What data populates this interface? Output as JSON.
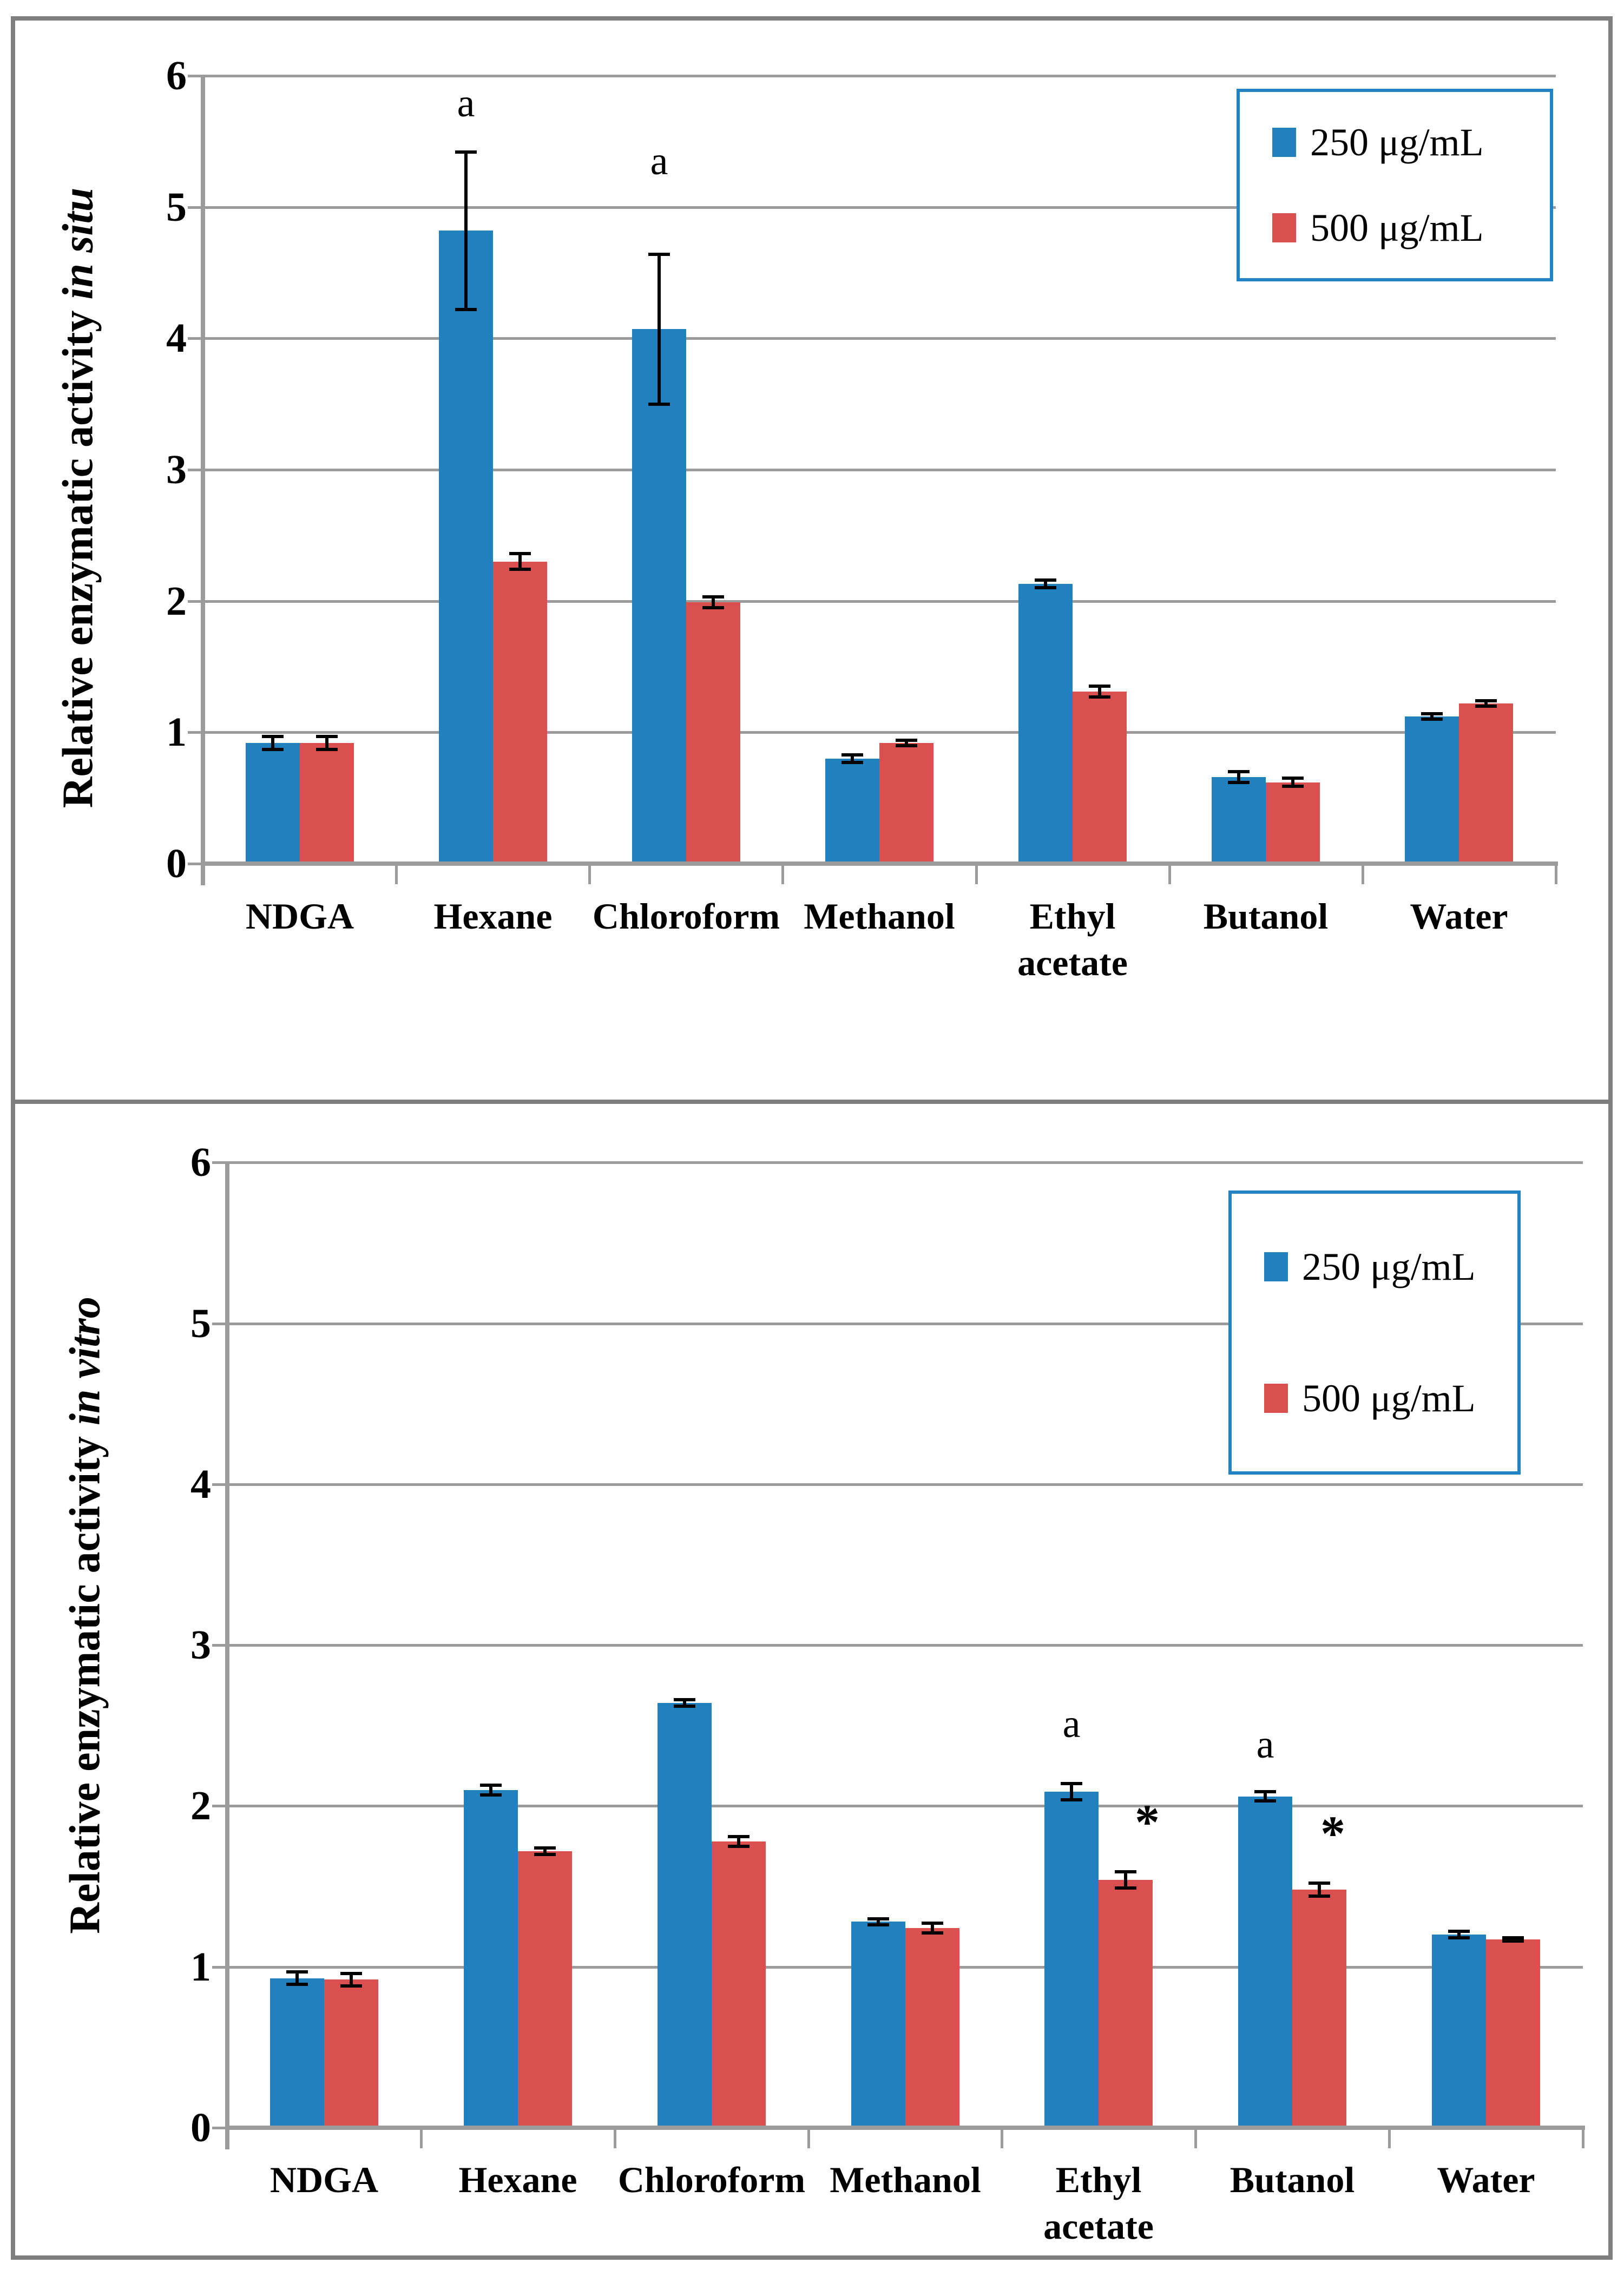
{
  "figure": {
    "panels": [
      {
        "ylabel_main": "Relative enzymatic activity",
        "ylabel_italic": "in situ"
      },
      {
        "ylabel_main": "Relative enzymatic activity",
        "ylabel_italic": "in vitro"
      }
    ],
    "legend": {
      "items": [
        {
          "label": "250 μg/mL",
          "color": "#2180BE"
        },
        {
          "label": "500 μg/mL",
          "color": "#D9504E"
        }
      ]
    },
    "colors": {
      "series_250": "#2180BE",
      "series_500": "#D9504E",
      "gridline": "#9B9B9B",
      "frame": "#7F7F7F",
      "legend_border": "#2183C4",
      "error_bar": "#000000"
    }
  },
  "chart_data": [
    {
      "type": "bar",
      "title": "Relative enzymatic activity in situ",
      "ylabel": "Relative enzymatic activity in situ",
      "xlabel": "",
      "ylim": [
        0,
        6
      ],
      "yticks": [
        0,
        1,
        2,
        3,
        4,
        5,
        6
      ],
      "grid": true,
      "legend_position": "top-right",
      "categories": [
        "NDGA",
        "Hexane",
        "Chloroform",
        "Methanol",
        "Ethyl acetate",
        "Butanol",
        "Water"
      ],
      "series": [
        {
          "name": "250 μg/mL",
          "color": "#2180BE",
          "values": [
            0.92,
            4.82,
            4.07,
            0.8,
            2.13,
            0.66,
            1.12
          ],
          "errors": [
            0.05,
            0.6,
            0.57,
            0.03,
            0.03,
            0.04,
            0.02
          ]
        },
        {
          "name": "500 μg/mL",
          "color": "#D9504E",
          "values": [
            0.92,
            2.3,
            1.99,
            0.92,
            1.31,
            0.62,
            1.22
          ],
          "errors": [
            0.05,
            0.06,
            0.04,
            0.02,
            0.04,
            0.03,
            0.02
          ]
        }
      ],
      "annotations": [
        {
          "text": "a",
          "category": "Hexane",
          "series": 0,
          "value": 5.79
        },
        {
          "text": "a",
          "category": "Chloroform",
          "series": 0,
          "value": 5.35
        }
      ]
    },
    {
      "type": "bar",
      "title": "Relative enzymatic activity in vitro",
      "ylabel": "Relative enzymatic activity in vitro",
      "xlabel": "",
      "ylim": [
        0,
        6
      ],
      "yticks": [
        0,
        1,
        2,
        3,
        4,
        5,
        6
      ],
      "grid": true,
      "legend_position": "top-right",
      "categories": [
        "NDGA",
        "Hexane",
        "Chloroform",
        "Methanol",
        "Ethyl acetate",
        "Butanol",
        "Water"
      ],
      "series": [
        {
          "name": "250 μg/mL",
          "color": "#2180BE",
          "values": [
            0.93,
            2.1,
            2.64,
            1.28,
            2.09,
            2.06,
            1.2
          ],
          "errors": [
            0.04,
            0.03,
            0.02,
            0.02,
            0.05,
            0.03,
            0.02
          ]
        },
        {
          "name": "500 μg/mL",
          "color": "#D9504E",
          "values": [
            0.92,
            1.72,
            1.78,
            1.24,
            1.54,
            1.48,
            1.17
          ],
          "errors": [
            0.04,
            0.02,
            0.03,
            0.03,
            0.05,
            0.04,
            0.01
          ]
        }
      ],
      "annotations": [
        {
          "text": "a",
          "category": "Ethyl acetate",
          "series": 0,
          "value": 2.51
        },
        {
          "text": "a",
          "category": "Butanol",
          "series": 0,
          "value": 2.38
        },
        {
          "text": "*",
          "category": "Ethyl acetate",
          "series": 1,
          "value": 1.9,
          "dx": 40
        },
        {
          "text": "*",
          "category": "Butanol",
          "series": 1,
          "value": 1.83,
          "dx": 25
        }
      ]
    }
  ]
}
